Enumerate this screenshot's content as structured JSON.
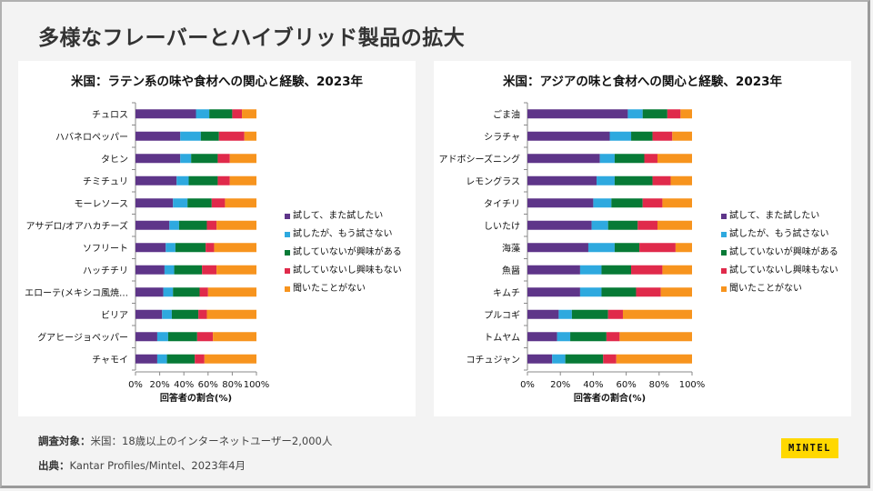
{
  "page": {
    "title": "多様なフレーバーとハイブリッド製品の拡大",
    "footer": {
      "survey_label": "調査対象：",
      "survey_text": "米国：18歳以上のインターネットユーザー2,000人",
      "source_label": "出典：",
      "source_text": "Kantar Profiles/Mintel、2023年4月"
    },
    "logo": "MINTEL"
  },
  "legend": [
    {
      "label": "試して、また試したい",
      "color": "#5e3589"
    },
    {
      "label": "試したが、もう試さない",
      "color": "#2ea9df"
    },
    {
      "label": "試していないが興味がある",
      "color": "#077a36"
    },
    {
      "label": "試していないし興味もない",
      "color": "#e02a4b"
    },
    {
      "label": "聞いたことがない",
      "color": "#f7941e"
    }
  ],
  "chart_data": [
    {
      "type": "bar",
      "orientation": "horizontal",
      "stacked": true,
      "title": "米国：ラテン系の味や食材への関心と経験、2023年",
      "xlabel": "回答者の割合(%)",
      "ylabel": "",
      "xlim": [
        0,
        100
      ],
      "xticks": [
        "0%",
        "20%",
        "40%",
        "60%",
        "80%",
        "100%"
      ],
      "legend_position": "right",
      "categories": [
        "チュロス",
        "ハバネロペッパー",
        "タヒン",
        "チミチュリ",
        "モーレソース",
        "アサデロ/オアハカチーズ",
        "ソフリート",
        "ハッチチリ",
        "エローテ(メキシコ風焼…",
        "ビリア",
        "グアヒージョペッパー",
        "チャモイ"
      ],
      "series": [
        {
          "name": "試して、また試したい",
          "values": [
            50,
            37,
            37,
            34,
            31,
            28,
            25,
            24,
            23,
            22,
            18,
            18
          ]
        },
        {
          "name": "試したが、もう試さない",
          "values": [
            11,
            17,
            9,
            10,
            12,
            8,
            8,
            8,
            8,
            8,
            9,
            8
          ]
        },
        {
          "name": "試していないが興味がある",
          "values": [
            19,
            15,
            22,
            24,
            20,
            23,
            25,
            23,
            22,
            22,
            24,
            23
          ]
        },
        {
          "name": "試していないし興味もない",
          "values": [
            8,
            21,
            10,
            10,
            11,
            8,
            7,
            12,
            7,
            7,
            13,
            8
          ]
        },
        {
          "name": "聞いたことがない",
          "values": [
            12,
            10,
            22,
            22,
            26,
            33,
            35,
            33,
            40,
            41,
            36,
            43
          ]
        }
      ]
    },
    {
      "type": "bar",
      "orientation": "horizontal",
      "stacked": true,
      "title": "米国：アジアの味と食材への関心と経験、2023年",
      "xlabel": "回答者の割合(%)",
      "ylabel": "",
      "xlim": [
        0,
        100
      ],
      "xticks": [
        "0%",
        "20%",
        "40%",
        "60%",
        "80%",
        "100%"
      ],
      "legend_position": "right",
      "categories": [
        "ごま油",
        "シラチャ",
        "アドボシーズニング",
        "レモングラス",
        "タイチリ",
        "しいたけ",
        "海藻",
        "魚醤",
        "キムチ",
        "プルコギ",
        "トムヤム",
        "コチュジャン"
      ],
      "series": [
        {
          "name": "試して、また試したい",
          "values": [
            61,
            50,
            44,
            42,
            40,
            39,
            37,
            32,
            32,
            19,
            18,
            15
          ]
        },
        {
          "name": "試したが、もう試さない",
          "values": [
            9,
            13,
            9,
            11,
            11,
            10,
            16,
            13,
            13,
            8,
            8,
            8
          ]
        },
        {
          "name": "試していないが興味がある",
          "values": [
            15,
            13,
            18,
            23,
            19,
            18,
            15,
            18,
            21,
            22,
            22,
            23
          ]
        },
        {
          "name": "試していないし興味もない",
          "values": [
            8,
            12,
            8,
            11,
            12,
            12,
            22,
            19,
            15,
            9,
            8,
            8
          ]
        },
        {
          "name": "聞いたことがない",
          "values": [
            7,
            12,
            21,
            13,
            18,
            21,
            10,
            18,
            19,
            42,
            44,
            46
          ]
        }
      ]
    }
  ]
}
